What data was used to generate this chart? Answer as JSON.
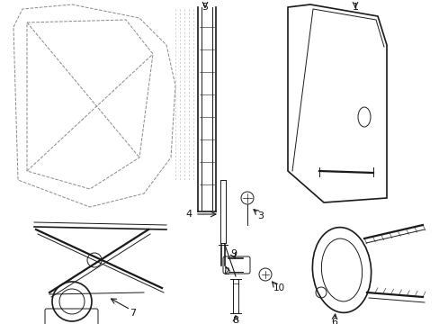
{
  "bg_color": "#ffffff",
  "line_color": "#1a1a1a",
  "dash_color": "#888888",
  "label_color": "#111111",
  "figsize": [
    4.89,
    3.6
  ],
  "dpi": 100
}
